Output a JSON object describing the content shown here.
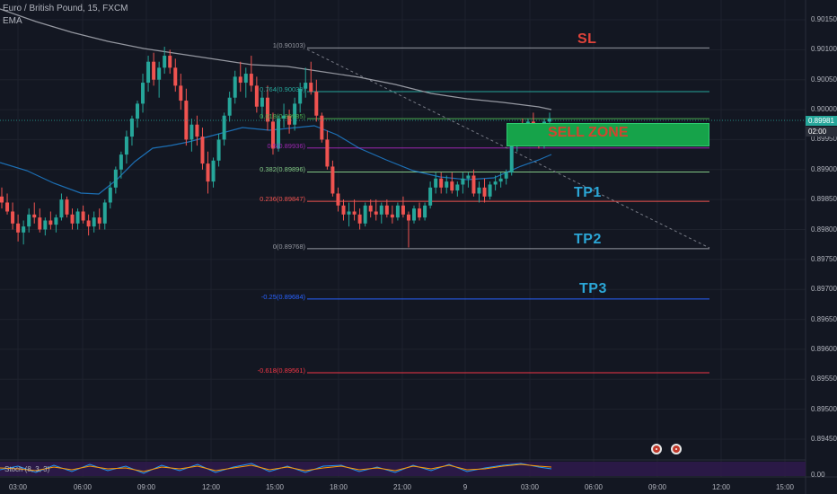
{
  "header": {
    "symbol_line": "Euro / British Pound, 15, FXCM",
    "indicator": "EMA"
  },
  "stoch": {
    "label": "Stoch (8, 3, 3)"
  },
  "price_axis": {
    "ticks": [
      "0.90150",
      "0.90100",
      "0.90050",
      "0.90000",
      "0.89950",
      "0.89900",
      "0.89850",
      "0.89800",
      "0.89750",
      "0.89700",
      "0.89650",
      "0.89600",
      "0.89550",
      "0.89500",
      "0.89450"
    ],
    "current_price": "0.89981",
    "countdown": "02:00",
    "stoch_tick": "0.00"
  },
  "time_axis": {
    "ticks": [
      "03:00",
      "06:00",
      "09:00",
      "12:00",
      "15:00",
      "18:00",
      "21:00",
      "9",
      "03:00",
      "06:00",
      "09:00",
      "12:00",
      "15:00"
    ]
  },
  "fib_levels": [
    {
      "label": "1(0.90103)",
      "price": 0.90103,
      "color": "#9598a1"
    },
    {
      "label": "0.764(0.90030)",
      "price": 0.9003,
      "color": "#26a69a"
    },
    {
      "label": "0.618(0.89985)",
      "price": 0.89985,
      "color": "#4caf50"
    },
    {
      "label": "0.5(0.89936)",
      "price": 0.89936,
      "color": "#9c27b0"
    },
    {
      "label": "0.382(0.89896)",
      "price": 0.89896,
      "color": "#81c784"
    },
    {
      "label": "0.236(0.89847)",
      "price": 0.89847,
      "color": "#ef5350"
    },
    {
      "label": "0(0.89768)",
      "price": 0.89768,
      "color": "#9598a1"
    },
    {
      "label": "-0.25(0.89684)",
      "price": 0.89684,
      "color": "#2962ff"
    },
    {
      "label": "-0.618(0.89561)",
      "price": 0.89561,
      "color": "#f23645"
    }
  ],
  "zones": {
    "sl_label": "SL",
    "sell_label": "SELL ZONE",
    "tp1_label": "TP1",
    "tp2_label": "TP2",
    "tp3_label": "TP3"
  },
  "colors": {
    "background": "#131722",
    "bull": "#26a69a",
    "bear": "#ef5350",
    "ema_long": "#9598a1",
    "ema_short": "#2196f3",
    "sell_zone": "#16a34a",
    "price_tag": "#26a69a"
  },
  "icons": [
    "event-icon",
    "event-icon"
  ],
  "chart_data": {
    "type": "candlestick",
    "symbol": "Euro / British Pound, 15, FXCM",
    "candles": [
      [
        0.89855,
        0.8987,
        0.89835,
        0.89845
      ],
      [
        0.89845,
        0.8986,
        0.89825,
        0.8983
      ],
      [
        0.8983,
        0.89845,
        0.898,
        0.8981
      ],
      [
        0.8981,
        0.89825,
        0.8978,
        0.89795
      ],
      [
        0.89795,
        0.89815,
        0.89775,
        0.89805
      ],
      [
        0.89805,
        0.89835,
        0.89795,
        0.89825
      ],
      [
        0.89825,
        0.89845,
        0.8981,
        0.8982
      ],
      [
        0.8982,
        0.89835,
        0.89795,
        0.898
      ],
      [
        0.898,
        0.8982,
        0.8979,
        0.89815
      ],
      [
        0.89815,
        0.8983,
        0.898,
        0.89808
      ],
      [
        0.89808,
        0.89825,
        0.89795,
        0.8982
      ],
      [
        0.8982,
        0.8986,
        0.89815,
        0.8985
      ],
      [
        0.8985,
        0.89855,
        0.8982,
        0.89825
      ],
      [
        0.89825,
        0.89835,
        0.898,
        0.8981
      ],
      [
        0.8981,
        0.89835,
        0.898,
        0.8983
      ],
      [
        0.8983,
        0.8984,
        0.8981,
        0.89815
      ],
      [
        0.89815,
        0.89825,
        0.8979,
        0.89805
      ],
      [
        0.89805,
        0.8983,
        0.89795,
        0.8982
      ],
      [
        0.8982,
        0.89835,
        0.898,
        0.8981
      ],
      [
        0.8981,
        0.8985,
        0.898,
        0.89845
      ],
      [
        0.89845,
        0.8988,
        0.89835,
        0.8987
      ],
      [
        0.8987,
        0.89905,
        0.8986,
        0.899
      ],
      [
        0.899,
        0.8993,
        0.89885,
        0.89925
      ],
      [
        0.89925,
        0.89965,
        0.8991,
        0.89955
      ],
      [
        0.89955,
        0.8999,
        0.8994,
        0.89985
      ],
      [
        0.89985,
        0.90015,
        0.8997,
        0.9001
      ],
      [
        0.9001,
        0.9006,
        0.89995,
        0.90045
      ],
      [
        0.90045,
        0.9009,
        0.9003,
        0.9008
      ],
      [
        0.9008,
        0.90095,
        0.9004,
        0.9005
      ],
      [
        0.9005,
        0.9008,
        0.9002,
        0.9007
      ],
      [
        0.9007,
        0.90105,
        0.9006,
        0.9009
      ],
      [
        0.9009,
        0.901,
        0.9006,
        0.9007
      ],
      [
        0.9007,
        0.90085,
        0.9003,
        0.9004
      ],
      [
        0.9004,
        0.9006,
        0.9,
        0.90015
      ],
      [
        0.90015,
        0.90035,
        0.8994,
        0.8995
      ],
      [
        0.8995,
        0.89985,
        0.8993,
        0.89975
      ],
      [
        0.89975,
        0.8999,
        0.8994,
        0.89955
      ],
      [
        0.89955,
        0.8997,
        0.899,
        0.8991
      ],
      [
        0.8991,
        0.8993,
        0.8986,
        0.8988
      ],
      [
        0.8988,
        0.8992,
        0.8987,
        0.89915
      ],
      [
        0.89915,
        0.8996,
        0.89905,
        0.8995
      ],
      [
        0.8995,
        0.89995,
        0.8994,
        0.8999
      ],
      [
        0.8999,
        0.9003,
        0.8998,
        0.9002
      ],
      [
        0.9002,
        0.90065,
        0.9001,
        0.90055
      ],
      [
        0.90055,
        0.9008,
        0.9003,
        0.90045
      ],
      [
        0.90045,
        0.9007,
        0.9002,
        0.9006
      ],
      [
        0.9006,
        0.9009,
        0.9003,
        0.9004
      ],
      [
        0.9004,
        0.90055,
        0.89995,
        0.90005
      ],
      [
        0.90005,
        0.9003,
        0.89985,
        0.9002
      ],
      [
        0.9002,
        0.9004,
        0.89965,
        0.8998
      ],
      [
        0.8998,
        0.89995,
        0.89925,
        0.89935
      ],
      [
        0.89935,
        0.8999,
        0.8993,
        0.89985
      ],
      [
        0.89985,
        0.9001,
        0.8997,
        0.8999
      ],
      [
        0.8999,
        0.9,
        0.8996,
        0.89975
      ],
      [
        0.89975,
        0.9002,
        0.89965,
        0.9001
      ],
      [
        0.9001,
        0.90045,
        0.89995,
        0.90035
      ],
      [
        0.90035,
        0.9007,
        0.9002,
        0.90045
      ],
      [
        0.90045,
        0.9008,
        0.90025,
        0.9003
      ],
      [
        0.9003,
        0.9005,
        0.8998,
        0.8999
      ],
      [
        0.8999,
        0.89995,
        0.89945,
        0.8995
      ],
      [
        0.8995,
        0.89965,
        0.899,
        0.89905
      ],
      [
        0.89905,
        0.89915,
        0.89855,
        0.8986
      ],
      [
        0.8986,
        0.8987,
        0.8983,
        0.8984
      ],
      [
        0.8984,
        0.8985,
        0.89815,
        0.89825
      ],
      [
        0.89825,
        0.89845,
        0.89805,
        0.8983
      ],
      [
        0.8983,
        0.8985,
        0.89815,
        0.89825
      ],
      [
        0.89825,
        0.89835,
        0.898,
        0.8981
      ],
      [
        0.8981,
        0.89845,
        0.89805,
        0.8984
      ],
      [
        0.8984,
        0.8985,
        0.8982,
        0.8983
      ],
      [
        0.8983,
        0.8985,
        0.89815,
        0.89825
      ],
      [
        0.89825,
        0.89845,
        0.8981,
        0.8984
      ],
      [
        0.8984,
        0.8985,
        0.8982,
        0.89825
      ],
      [
        0.89825,
        0.8984,
        0.8981,
        0.8982
      ],
      [
        0.8982,
        0.89845,
        0.89815,
        0.8984
      ],
      [
        0.8984,
        0.89855,
        0.8982,
        0.89825
      ],
      [
        0.89825,
        0.8983,
        0.8977,
        0.89815
      ],
      [
        0.89815,
        0.8984,
        0.8981,
        0.89835
      ],
      [
        0.89835,
        0.89845,
        0.89815,
        0.8982
      ],
      [
        0.8982,
        0.89845,
        0.89815,
        0.8984
      ],
      [
        0.8984,
        0.8988,
        0.89835,
        0.8987
      ],
      [
        0.8987,
        0.89895,
        0.8986,
        0.89885
      ],
      [
        0.89885,
        0.89895,
        0.8986,
        0.8987
      ],
      [
        0.8987,
        0.8989,
        0.8986,
        0.8988
      ],
      [
        0.8988,
        0.89895,
        0.8986,
        0.89865
      ],
      [
        0.89865,
        0.8988,
        0.89855,
        0.89875
      ],
      [
        0.89875,
        0.89895,
        0.8986,
        0.89885
      ],
      [
        0.89885,
        0.89895,
        0.8987,
        0.8989
      ],
      [
        0.8989,
        0.899,
        0.89855,
        0.8986
      ],
      [
        0.8986,
        0.8988,
        0.89845,
        0.8987
      ],
      [
        0.8987,
        0.89885,
        0.89845,
        0.89855
      ],
      [
        0.89855,
        0.8988,
        0.8985,
        0.89875
      ],
      [
        0.89875,
        0.8989,
        0.89865,
        0.8988
      ],
      [
        0.8988,
        0.89895,
        0.8987,
        0.89885
      ],
      [
        0.89885,
        0.899,
        0.89875,
        0.89895
      ],
      [
        0.89895,
        0.89945,
        0.8989,
        0.8994
      ],
      [
        0.8994,
        0.89975,
        0.8993,
        0.89965
      ],
      [
        0.89965,
        0.89985,
        0.8994,
        0.8995
      ],
      [
        0.8995,
        0.89985,
        0.89945,
        0.8998
      ],
      [
        0.8998,
        0.89995,
        0.89955,
        0.8996
      ],
      [
        0.8996,
        0.89975,
        0.89935,
        0.8994
      ],
      [
        0.8994,
        0.89985,
        0.89935,
        0.8998
      ],
      [
        0.8998,
        0.89995,
        0.8997,
        0.89985
      ]
    ],
    "fib_retracement": [
      {
        "level": "1",
        "price": 0.90103
      },
      {
        "level": "0.764",
        "price": 0.9003
      },
      {
        "level": "0.618",
        "price": 0.89985
      },
      {
        "level": "0.5",
        "price": 0.89936
      },
      {
        "level": "0.382",
        "price": 0.89896
      },
      {
        "level": "0.236",
        "price": 0.89847
      },
      {
        "level": "0",
        "price": 0.89768
      },
      {
        "level": "-0.25",
        "price": 0.89684
      },
      {
        "level": "-0.618",
        "price": 0.89561
      }
    ],
    "current_price": 0.89981,
    "y_range": [
      0.89415,
      0.9017
    ],
    "x_ticks": [
      "03:00",
      "06:00",
      "09:00",
      "12:00",
      "15:00",
      "18:00",
      "21:00",
      "9",
      "03:00",
      "06:00",
      "09:00",
      "12:00",
      "15:00"
    ],
    "y_ticks": [
      0.9015,
      0.901,
      0.9005,
      0.9,
      0.8995,
      0.899,
      0.8985,
      0.898,
      0.8975,
      0.897,
      0.8965,
      0.896,
      0.8955,
      0.895,
      0.8945
    ],
    "annotations": [
      "SL",
      "SELL ZONE",
      "TP1",
      "TP2",
      "TP3"
    ],
    "indicators": [
      "EMA",
      "Stoch (8, 3, 3)"
    ],
    "grid": true
  }
}
